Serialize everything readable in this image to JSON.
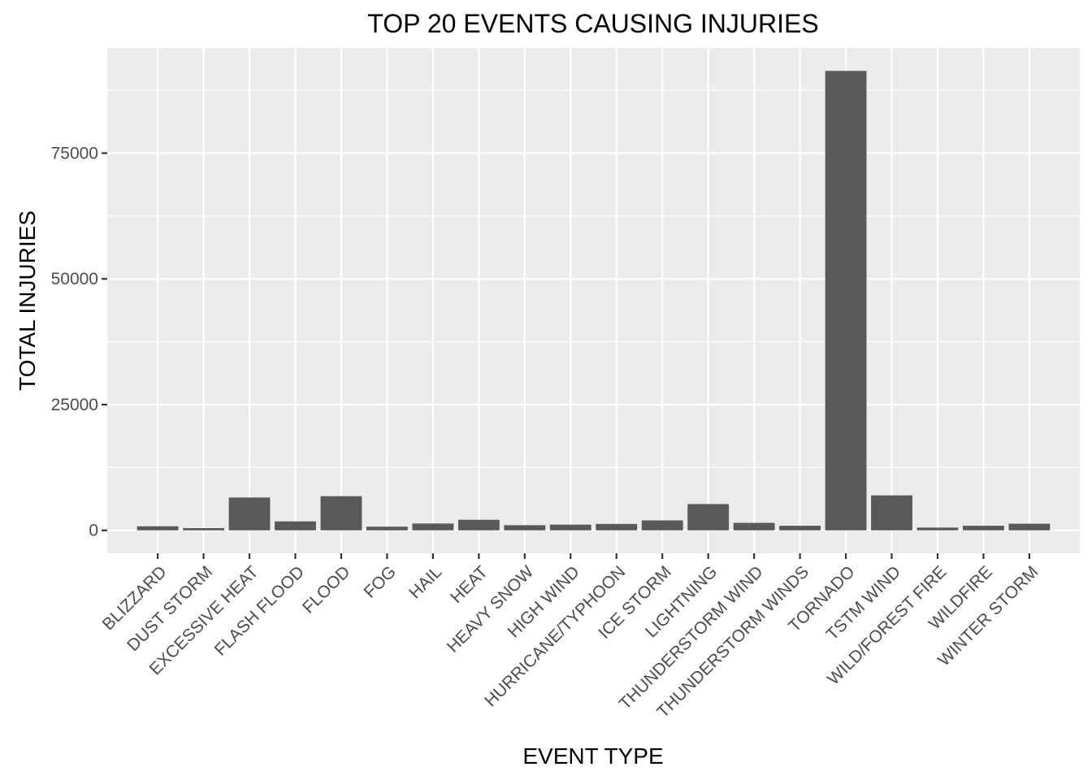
{
  "chart_data": {
    "type": "bar",
    "title": "TOP 20 EVENTS CAUSING INJURIES",
    "xlabel": "EVENT TYPE",
    "ylabel": "TOTAL INJURIES",
    "categories": [
      "BLIZZARD",
      "DUST STORM",
      "EXCESSIVE HEAT",
      "FLASH FLOOD",
      "FLOOD",
      "FOG",
      "HAIL",
      "HEAT",
      "HEAVY SNOW",
      "HIGH WIND",
      "HURRICANE/TYPHOON",
      "ICE STORM",
      "LIGHTNING",
      "THUNDERSTORM WIND",
      "THUNDERSTORM WINDS",
      "TORNADO",
      "TSTM WIND",
      "WILD/FOREST FIRE",
      "WILDFIRE",
      "WINTER STORM"
    ],
    "values": [
      805,
      440,
      6525,
      1777,
      6789,
      734,
      1361,
      2100,
      1021,
      1137,
      1275,
      1975,
      5230,
      1488,
      908,
      91346,
      6957,
      545,
      911,
      1321
    ],
    "ylim": [
      -4567,
      95913
    ],
    "yticks": [
      0,
      25000,
      50000,
      75000
    ],
    "ytick_labels": [
      "0",
      "25000",
      "50000",
      "75000"
    ],
    "grid": true,
    "colors": {
      "panel": "#ebebeb",
      "grid_major": "#ffffff",
      "bar": "#595959"
    }
  }
}
